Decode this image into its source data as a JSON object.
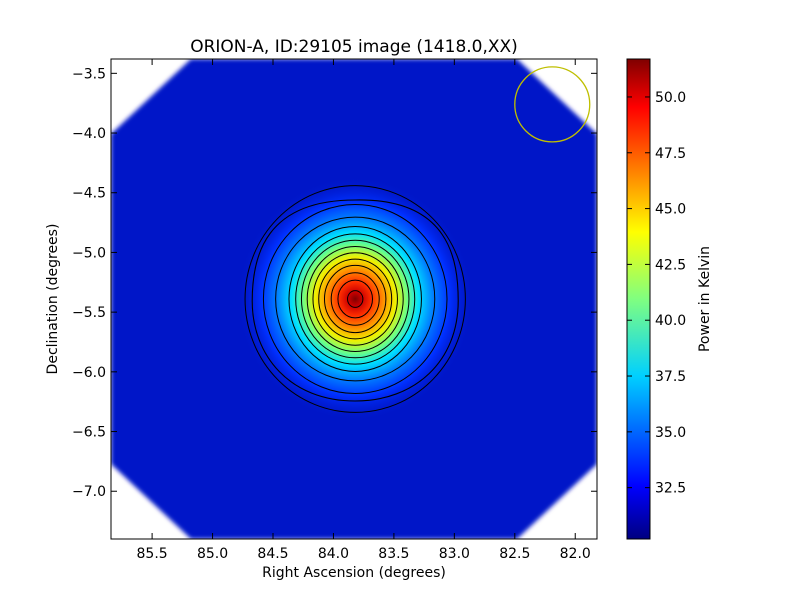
{
  "chart_data": {
    "type": "heatmap",
    "title": "ORION-A, ID:29105 image (1418.0,XX)",
    "xlabel": "Right Ascension (degrees)",
    "ylabel": "Declination (degrees)",
    "xlim": [
      85.84,
      81.82
    ],
    "ylim": [
      -7.4,
      -3.38
    ],
    "x_ticks": [
      "85.5",
      "85.0",
      "84.5",
      "84.0",
      "83.5",
      "83.0",
      "82.5",
      "82.0"
    ],
    "x_tick_values": [
      85.5,
      85.0,
      84.5,
      84.0,
      83.5,
      83.0,
      82.5,
      82.0
    ],
    "y_ticks": [
      "-3.5",
      "-4.0",
      "-4.5",
      "-5.0",
      "-5.5",
      "-6.0",
      "-6.5",
      "-7.0"
    ],
    "y_tick_values": [
      -3.5,
      -4.0,
      -4.5,
      -5.0,
      -5.5,
      -6.0,
      -6.5,
      -7.0
    ],
    "peak": {
      "ra": 83.82,
      "dec": -5.39,
      "value": 51.5
    },
    "background_value": 30.3,
    "colormap": "jet",
    "colorbar": {
      "label": "Power in Kelvin",
      "min": 30.2,
      "max": 51.7,
      "ticks": [
        "32.5",
        "35.0",
        "37.5",
        "40.0",
        "42.5",
        "45.0",
        "47.5",
        "50.0"
      ],
      "tick_values": [
        32.5,
        35.0,
        37.5,
        40.0,
        42.5,
        45.0,
        47.5,
        50.0
      ]
    },
    "beam_marker": {
      "ra": 82.19,
      "dec": -3.76,
      "radius_deg": 0.31,
      "color": "#bfbf00"
    }
  }
}
